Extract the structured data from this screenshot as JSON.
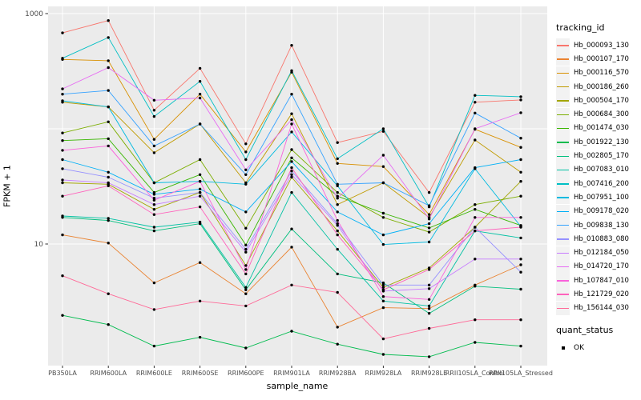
{
  "figure": {
    "panel_bg": "#EBEBEB",
    "grid_color": "#FFFFFF",
    "tick_color": "#333333",
    "tick_label_color": "#4D4D4D",
    "point_color": "#000000"
  },
  "axes": {
    "y_title": "FPKM + 1",
    "x_title": "sample_name"
  },
  "legend": {
    "tracking_title": "tracking_id",
    "quant_title": "quant_status",
    "quant_items": [
      {
        "label": "OK"
      }
    ]
  },
  "chart_data": {
    "type": "line",
    "title": "",
    "xlabel": "sample_name",
    "ylabel": "FPKM + 1",
    "yscale": "log10",
    "ylim": [
      0.88,
      1160
    ],
    "grid": true,
    "legend_position": "right",
    "y_ticks": [
      {
        "label": "1000",
        "value": 1000
      },
      {
        "label": "10",
        "value": 10
      }
    ],
    "y_minor_gridlines": [
      100
    ],
    "categories": [
      "PB350LA",
      "RRIM600LA",
      "RRIM600LE",
      "RRIM600SE",
      "RRIM600PE",
      "RRIM901LA",
      "RRIM928BA",
      "RRIM928LA",
      "RRIM928LE",
      "RRII105LA_Control",
      "RRII105LA_Stressed"
    ],
    "series": [
      {
        "name": "Hb_000093_130",
        "color": "#F8766D",
        "values": [
          680,
          870,
          145,
          335,
          74,
          530,
          76,
          95,
          28,
          170,
          178
        ]
      },
      {
        "name": "Hb_000107_170",
        "color": "#EA8331",
        "values": [
          12,
          10.2,
          4.6,
          6.9,
          3.7,
          9.4,
          1.9,
          2.8,
          2.75,
          4.4,
          6.6
        ]
      },
      {
        "name": "Hb_000116_570",
        "color": "#D89000",
        "values": [
          400,
          390,
          81,
          200,
          63,
          310,
          50,
          47,
          18,
          99,
          69
        ]
      },
      {
        "name": "Hb_000186_260",
        "color": "#C09B00",
        "values": [
          170,
          155,
          62,
          110,
          34,
          135,
          22,
          34,
          17,
          80,
          42
        ]
      },
      {
        "name": "Hb_000504_170",
        "color": "#A3A500",
        "values": [
          34,
          33,
          20,
          28,
          6.5,
          38,
          13,
          4.2,
          6.2,
          14,
          35
        ]
      },
      {
        "name": "Hb_000684_300",
        "color": "#7CAE00",
        "values": [
          92,
          115,
          34,
          54,
          13.7,
          66,
          28,
          17,
          12.7,
          22,
          26
        ]
      },
      {
        "name": "Hb_001474_030",
        "color": "#39B600",
        "values": [
          79,
          82,
          28,
          40,
          9.8,
          56,
          26,
          18.5,
          13.8,
          20,
          14.5
        ]
      },
      {
        "name": "Hb_001922_130",
        "color": "#00BB4E",
        "values": [
          2.4,
          2.0,
          1.3,
          1.55,
          1.25,
          1.75,
          1.35,
          1.1,
          1.05,
          1.4,
          1.3
        ]
      },
      {
        "name": "Hb_002805_170",
        "color": "#00BF7D",
        "values": [
          17,
          16,
          13,
          15,
          4.0,
          13.5,
          5.5,
          4.6,
          2.5,
          4.3,
          4.05
        ]
      },
      {
        "name": "Hb_007083_010",
        "color": "#00C1A3",
        "values": [
          17.5,
          16.7,
          14,
          15.5,
          4.2,
          28,
          9,
          3.2,
          2.9,
          13,
          11.3
        ]
      },
      {
        "name": "Hb_007416_200",
        "color": "#00BFC4",
        "values": [
          410,
          620,
          128,
          258,
          54,
          320,
          55,
          100,
          21,
          195,
          190
        ]
      },
      {
        "name": "Hb_007951_100",
        "color": "#00BAE0",
        "values": [
          175,
          155,
          34,
          35,
          33,
          94,
          32,
          9.9,
          10.4,
          45,
          14.2
        ]
      },
      {
        "name": "Hb_009178_020",
        "color": "#00B0F6",
        "values": [
          54,
          42,
          27,
          30,
          19,
          52,
          19,
          12,
          15,
          46,
          54
        ]
      },
      {
        "name": "Hb_009838_130",
        "color": "#35A2FF",
        "values": [
          200,
          215,
          71,
          110,
          40,
          200,
          33,
          34,
          21.5,
          137,
          83
        ]
      },
      {
        "name": "Hb_010883_080",
        "color": "#9590FF",
        "values": [
          45,
          38,
          25,
          28,
          9.0,
          43,
          15,
          4.4,
          4.4,
          14,
          5.7
        ]
      },
      {
        "name": "Hb_012184_050",
        "color": "#C77CFF",
        "values": [
          36,
          34,
          22,
          26,
          8.5,
          40,
          14.5,
          3.9,
          4.1,
          7.4,
          7.4
        ]
      },
      {
        "name": "Hb_014720_170",
        "color": "#E76BF3",
        "values": [
          222,
          340,
          177,
          185,
          44,
          120,
          25,
          59,
          16.5,
          100,
          138
        ]
      },
      {
        "name": "Hb_107847_010",
        "color": "#FA62DB",
        "values": [
          65,
          71,
          24,
          35,
          6.0,
          110,
          16,
          3.5,
          3.3,
          17,
          17
        ]
      },
      {
        "name": "Hb_121729_020",
        "color": "#FF62BC",
        "values": [
          26,
          32,
          18,
          21,
          5.5,
          46,
          12,
          4.0,
          6.0,
          13,
          14
        ]
      },
      {
        "name": "Hb_156144_030",
        "color": "#FF6A98",
        "values": [
          5.3,
          3.7,
          2.7,
          3.2,
          2.9,
          4.4,
          3.8,
          1.5,
          1.85,
          2.2,
          2.2
        ]
      }
    ]
  }
}
